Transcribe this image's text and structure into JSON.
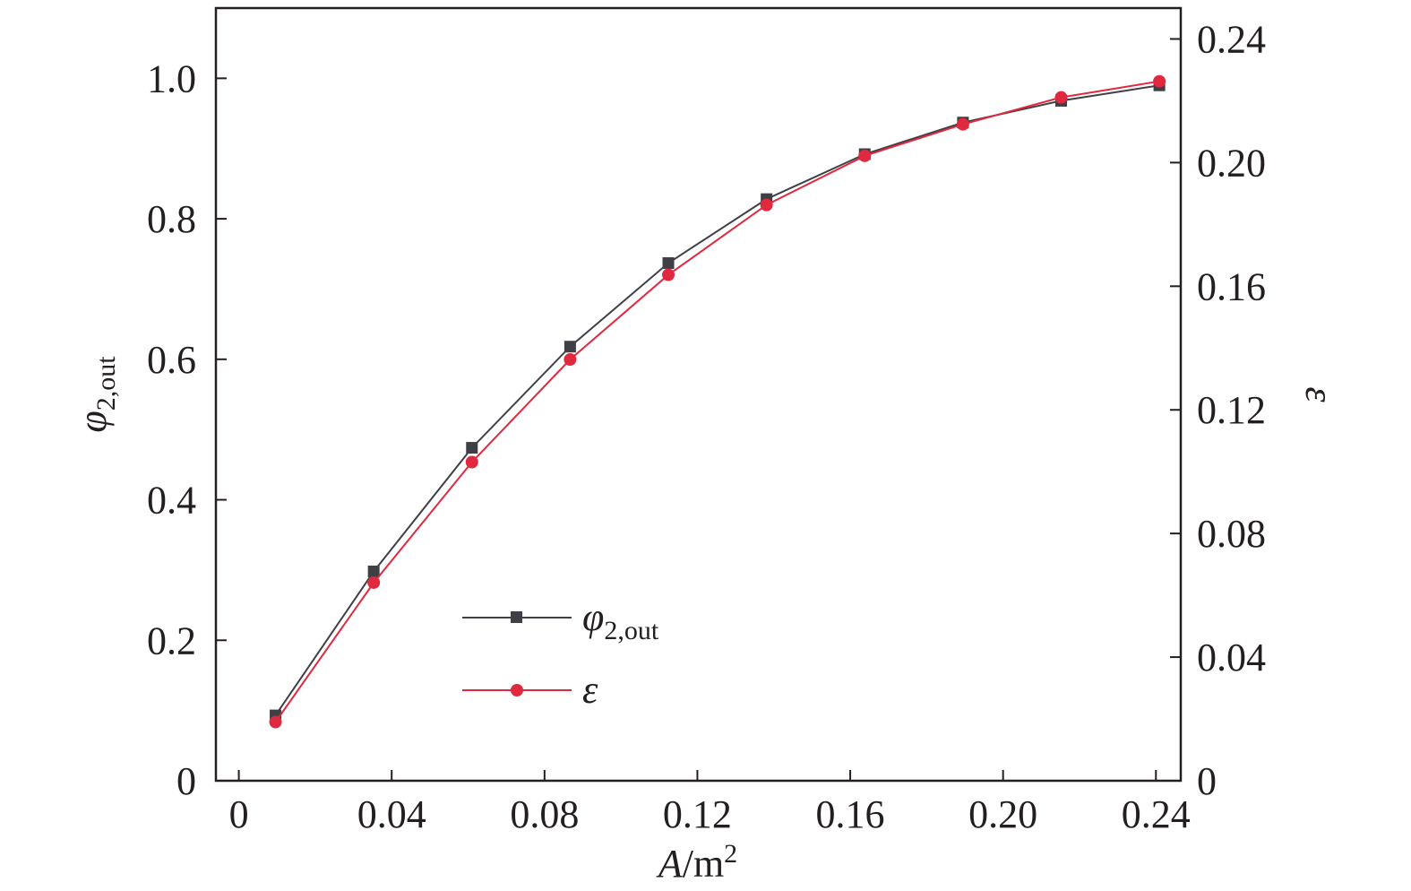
{
  "chart_data": {
    "type": "line",
    "xlabel": {
      "symbol": "A",
      "unit": "/m",
      "unit_sup": "2"
    },
    "ylabel_left": {
      "symbol": "φ",
      "sub": "2,out"
    },
    "ylabel_right": {
      "symbol": "ε"
    },
    "xlim": [
      -0.006,
      0.2465
    ],
    "ylim_left": [
      0,
      1.1
    ],
    "ylim_right": [
      0,
      0.25
    ],
    "x_ticks": [
      0,
      0.04,
      0.08,
      0.12,
      0.16,
      0.2,
      0.24
    ],
    "x_tick_labels": [
      "0",
      "0.04",
      "0.08",
      "0.12",
      "0.16",
      "0.20",
      "0.24"
    ],
    "y_left_ticks": [
      0,
      0.2,
      0.4,
      0.6,
      0.8,
      1.0
    ],
    "y_left_tick_labels": [
      "0",
      "0.2",
      "0.4",
      "0.6",
      "0.8",
      "1.0"
    ],
    "y_right_ticks": [
      0,
      0.04,
      0.08,
      0.12,
      0.16,
      0.2,
      0.24
    ],
    "y_right_tick_labels": [
      "0",
      "0.04",
      "0.08",
      "0.12",
      "0.16",
      "0.20",
      "0.24"
    ],
    "grid": false,
    "legend_placement": "lower-center",
    "x": [
      0.0096,
      0.0353,
      0.061,
      0.0867,
      0.1124,
      0.1381,
      0.1638,
      0.1895,
      0.2152,
      0.2409
    ],
    "series": [
      {
        "name": "φ2,out",
        "legend_symbol": "φ",
        "legend_sub": "2,out",
        "axis": "left",
        "marker": "square",
        "color": "#3f3f46",
        "values": [
          0.093,
          0.298,
          0.474,
          0.618,
          0.737,
          0.828,
          0.892,
          0.937,
          0.968,
          0.99
        ]
      },
      {
        "name": "ε",
        "legend_symbol": "ε",
        "legend_sub": "",
        "axis": "right",
        "marker": "circle",
        "color": "#e0293e",
        "values": [
          0.019,
          0.0641,
          0.1031,
          0.1363,
          0.1637,
          0.1863,
          0.2022,
          0.2124,
          0.2211,
          0.2263
        ]
      }
    ]
  }
}
